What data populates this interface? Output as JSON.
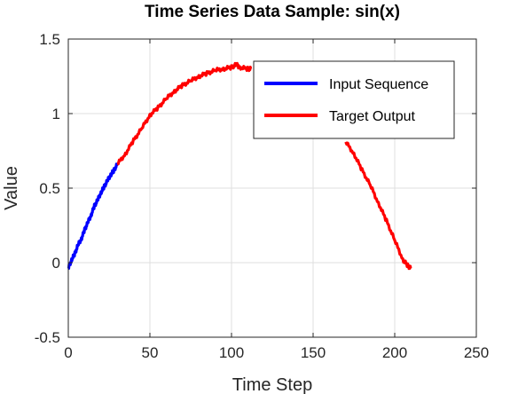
{
  "chart_data": {
    "type": "line",
    "title": "Time Series Data Sample: sin(x)",
    "xlabel": "Time Step",
    "ylabel": "Value",
    "xlim": [
      0,
      250
    ],
    "ylim": [
      -0.5,
      1.5
    ],
    "xticks": [
      0,
      50,
      100,
      150,
      200,
      250
    ],
    "yticks": [
      -0.5,
      0,
      0.5,
      1,
      1.5
    ],
    "xtick_labels": [
      "0",
      "50",
      "100",
      "150",
      "200",
      "250"
    ],
    "ytick_labels": [
      "-0.5",
      "0",
      "0.5",
      "1",
      "1.5"
    ],
    "grid": true,
    "legend_position": "top-right",
    "series": [
      {
        "name": "Input Sequence",
        "color": "#0000ff",
        "x": [
          0,
          2,
          4,
          6,
          8,
          10,
          12,
          14,
          16,
          18,
          20,
          22,
          24,
          26,
          28,
          30
        ],
        "y": [
          -0.04,
          0.02,
          0.06,
          0.12,
          0.16,
          0.22,
          0.27,
          0.32,
          0.38,
          0.42,
          0.47,
          0.51,
          0.55,
          0.59,
          0.62,
          0.66
        ]
      },
      {
        "name": "Target Output",
        "color": "#ff0000",
        "x": [
          30,
          35,
          40,
          45,
          50,
          55,
          60,
          65,
          70,
          75,
          80,
          85,
          90,
          95,
          100,
          103,
          105,
          110,
          112
        ],
        "y": [
          0.66,
          0.73,
          0.82,
          0.9,
          0.99,
          1.04,
          1.1,
          1.15,
          1.19,
          1.22,
          1.25,
          1.27,
          1.29,
          1.3,
          1.31,
          1.33,
          1.31,
          1.3,
          1.3
        ],
        "x2": [
          170,
          175,
          180,
          185,
          190,
          195,
          200,
          205,
          208,
          210
        ],
        "y2": [
          0.81,
          0.73,
          0.62,
          0.52,
          0.4,
          0.28,
          0.15,
          0.02,
          -0.02,
          -0.04
        ]
      }
    ]
  }
}
